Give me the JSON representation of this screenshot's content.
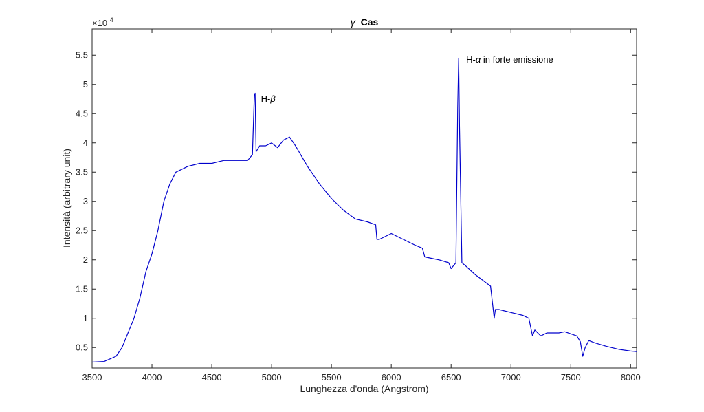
{
  "chart_data": {
    "type": "line",
    "title_symbol": "γ",
    "title_text": "Cas",
    "xlabel": "Lunghezza d'onda (Angstrom)",
    "ylabel": "Intensità (arbitrary unit)",
    "y_exponent_label": "×10",
    "y_exponent_power": "4",
    "xlim": [
      3500,
      8050
    ],
    "ylim": [
      0.15,
      5.95
    ],
    "y_scale_note": "values in units of 10^4",
    "grid": false,
    "x_ticks": [
      3500,
      4000,
      4500,
      5000,
      5500,
      6000,
      6500,
      7000,
      7500,
      8000
    ],
    "x_tick_labels": [
      "3500",
      "4000",
      "4500",
      "5000",
      "5500",
      "6000",
      "6500",
      "7000",
      "7500",
      "8000"
    ],
    "y_ticks": [
      0.5,
      1,
      1.5,
      2,
      2.5,
      3,
      3.5,
      4,
      4.5,
      5,
      5.5
    ],
    "y_tick_labels": [
      "0.5",
      "1",
      "1.5",
      "2",
      "2.5",
      "3",
      "3.5",
      "4",
      "4.5",
      "5",
      "5.5"
    ],
    "line_color": "#0000cc",
    "series": [
      {
        "x": [
          3500,
          3600,
          3700,
          3750,
          3800,
          3850,
          3900,
          3950,
          4000,
          4050,
          4100,
          4150,
          4200,
          4300,
          4400,
          4500,
          4600,
          4700,
          4800,
          4840,
          4855,
          4862,
          4870,
          4885,
          4900,
          4950,
          5000,
          5050,
          5100,
          5150,
          5200,
          5300,
          5400,
          5500,
          5600,
          5700,
          5800,
          5870,
          5880,
          5900,
          6000,
          6100,
          6200,
          6260,
          6280,
          6400,
          6480,
          6500,
          6540,
          6555,
          6563,
          6570,
          6590,
          6620,
          6700,
          6830,
          6860,
          6870,
          6900,
          7000,
          7100,
          7150,
          7180,
          7200,
          7250,
          7300,
          7400,
          7450,
          7550,
          7580,
          7600,
          7620,
          7650,
          7700,
          7800,
          7900,
          8000,
          8050
        ],
        "y": [
          0.25,
          0.26,
          0.35,
          0.5,
          0.75,
          1.0,
          1.35,
          1.8,
          2.1,
          2.5,
          3.0,
          3.3,
          3.5,
          3.6,
          3.65,
          3.65,
          3.7,
          3.7,
          3.7,
          3.8,
          4.8,
          4.85,
          3.85,
          3.9,
          3.95,
          3.95,
          4.0,
          3.92,
          4.05,
          4.1,
          3.95,
          3.6,
          3.3,
          3.05,
          2.85,
          2.7,
          2.65,
          2.6,
          2.35,
          2.35,
          2.45,
          2.35,
          2.25,
          2.2,
          2.05,
          2.0,
          1.95,
          1.85,
          1.95,
          4.6,
          5.45,
          4.3,
          1.95,
          1.9,
          1.75,
          1.55,
          1.0,
          1.15,
          1.15,
          1.1,
          1.05,
          1.0,
          0.7,
          0.8,
          0.7,
          0.75,
          0.75,
          0.77,
          0.7,
          0.6,
          0.35,
          0.5,
          0.62,
          0.58,
          0.52,
          0.47,
          0.44,
          0.43
        ]
      }
    ],
    "annotations": [
      {
        "text_main": "H-",
        "text_greek": "β",
        "text_rest": "",
        "x": 4865,
        "y": 4.75
      },
      {
        "text_main": "H-",
        "text_greek": "α",
        "text_rest": " in forte emissione",
        "x": 6580,
        "y": 5.42
      }
    ]
  }
}
